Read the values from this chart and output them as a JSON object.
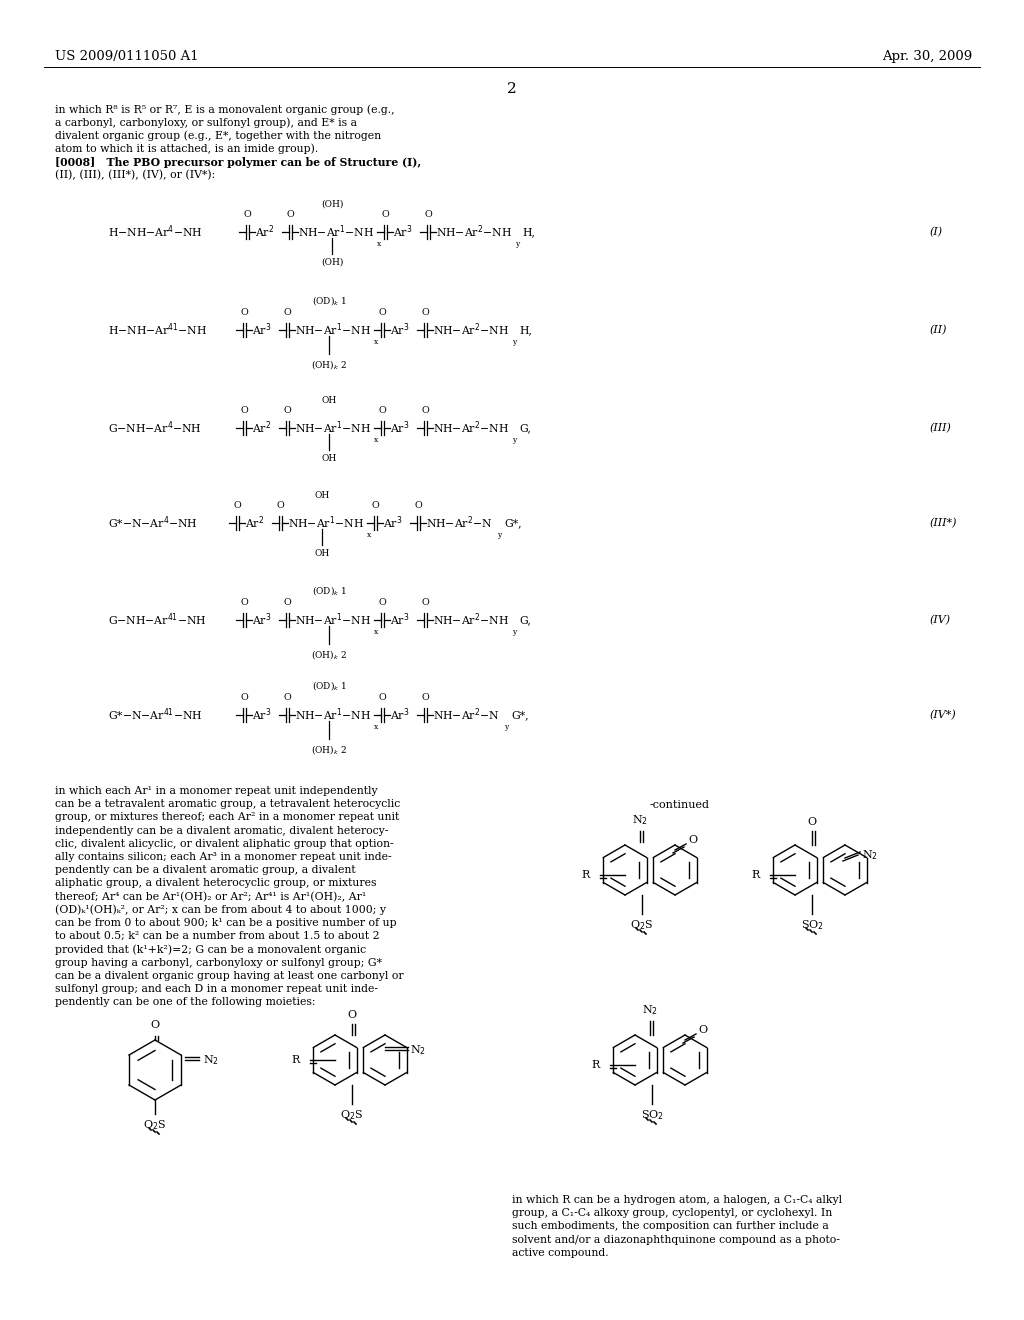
{
  "bg": "#ffffff",
  "header_left": "US 2009/0111050 A1",
  "header_right": "Apr. 30, 2009",
  "page_num": "2",
  "top_text": [
    "in which R⁸ is R⁵ or R⁷, E is a monovalent organic group (e.g.,",
    "a carbonyl, carbonyloxy, or sulfonyl group), and E* is a",
    "divalent organic group (e.g., E*, together with the nitrogen",
    "atom to which it is attached, is an imide group).",
    "[0008]   The PBO precursor polymer can be of Structure (I),",
    "(II), (III), (III*), (IV), or (IV*):"
  ],
  "bottom_left_text": [
    "in which each Ar¹ in a monomer repeat unit independently",
    "can be a tetravalent aromatic group, a tetravalent heterocyclic",
    "group, or mixtures thereof; each Ar² in a monomer repeat unit",
    "independently can be a divalent aromatic, divalent heterocy-",
    "clic, divalent alicyclic, or divalent aliphatic group that option-",
    "ally contains silicon; each Ar³ in a monomer repeat unit inde-",
    "pendently can be a divalent aromatic group, a divalent",
    "aliphatic group, a divalent heterocyclic group, or mixtures",
    "thereof; Ar⁴ can be Ar¹(OH)₂ or Ar²; Ar⁴¹ is Ar¹(OH)₂, Ar¹",
    "(OD)ₖ¹(OH)ₖ², or Ar²; x can be from about 4 to about 1000; y",
    "can be from 0 to about 900; k¹ can be a positive number of up",
    "to about 0.5; k² can be a number from about 1.5 to about 2",
    "provided that (k¹+k²)=2; G can be a monovalent organic",
    "group having a carbonyl, carbonyloxy or sulfonyl group; G*",
    "can be a divalent organic group having at least one carbonyl or",
    "sulfonyl group; and each D in a monomer repeat unit inde-",
    "pendently can be one of the following moieties:"
  ],
  "bottom_right_text": [
    "in which R can be a hydrogen atom, a halogen, a C₁-C₄ alkyl",
    "group, a C₁-C₄ alkoxy group, cyclopentyl, or cyclohexyl. In",
    "such embodiments, the composition can further include a",
    "solvent and/or a diazonaphthquinone compound as a photo-",
    "active compound."
  ]
}
